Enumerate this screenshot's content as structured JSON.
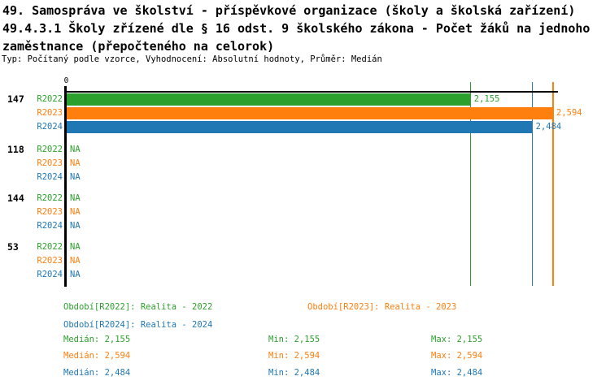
{
  "header": {
    "title_line1": "49. Samospráva ve školství - příspěvkové organizace (školy a školská zařízení)",
    "title_line2": "49.4.3.1 Školy zřízené dle § 16 odst. 9 školského zákona - Počet žáků na jednoho",
    "title_line3": "zaměstnance (přepočteného na celorok)",
    "subtitle": "Typ: Počítaný podle vzorce, Vyhodnocení: Absolutní hodnoty, Průměr: Medián"
  },
  "colors": {
    "r2022": "#2ca02c",
    "r2023": "#ff7f0e",
    "r2024": "#1f77b4",
    "axis": "#000000",
    "background": "#ffffff"
  },
  "chart_data": {
    "type": "bar",
    "orientation": "horizontal",
    "zero_tick_label": "0",
    "categories": [
      "147",
      "118",
      "144",
      "53"
    ],
    "series": [
      {
        "name": "R2022",
        "color": "#2ca02c",
        "values": [
          2.155,
          null,
          null,
          null
        ],
        "value_labels": [
          "2,155",
          "NA",
          "NA",
          "NA"
        ]
      },
      {
        "name": "R2023",
        "color": "#ff7f0e",
        "values": [
          2.594,
          null,
          null,
          null
        ],
        "value_labels": [
          "2,594",
          "NA",
          "NA",
          "NA"
        ]
      },
      {
        "name": "R2024",
        "color": "#1f77b4",
        "values": [
          2.484,
          null,
          null,
          null
        ],
        "value_labels": [
          "2,484",
          "NA",
          "NA",
          "NA"
        ]
      }
    ],
    "xlim": [
      0,
      2.62
    ],
    "reference_lines": [
      {
        "value": 2.155,
        "color": "#2ca02c"
      },
      {
        "value": 2.484,
        "color": "#1f77b4"
      },
      {
        "value": 2.594,
        "color": "#ff7f0e"
      }
    ],
    "grid": false,
    "legend_position": "bottom"
  },
  "legend": {
    "items": [
      {
        "label": "Období[R2022]: Realita - 2022",
        "color": "#2ca02c"
      },
      {
        "label": "Období[R2023]: Realita - 2023",
        "color": "#ff7f0e"
      },
      {
        "label": "Období[R2024]: Realita - 2024",
        "color": "#1f77b4"
      }
    ]
  },
  "stats": {
    "rows": [
      {
        "color": "#2ca02c",
        "median": "Medián: 2,155",
        "min": "Min: 2,155",
        "max": "Max: 2,155"
      },
      {
        "color": "#ff7f0e",
        "median": "Medián: 2,594",
        "min": "Min: 2,594",
        "max": "Max: 2,594"
      },
      {
        "color": "#1f77b4",
        "median": "Medián: 2,484",
        "min": "Min: 2,484",
        "max": "Max: 2,484"
      }
    ]
  }
}
